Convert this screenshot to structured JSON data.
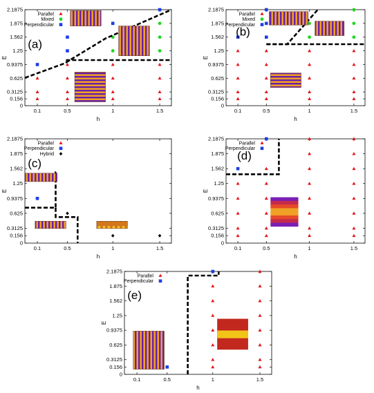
{
  "figure": {
    "colors": {
      "parallel": "#e8141c",
      "mixed": "#22d622",
      "perpendicular": "#1e3ee6",
      "hybrid": "#000000",
      "boundary": "#000000",
      "stripe_dark": "#6a1fa8",
      "stripe_light": "#f0a025"
    }
  },
  "chart_data": [
    {
      "type": "scatter",
      "panel_label": "(a)",
      "xlabel": "h",
      "ylabel": "E",
      "x_ticks": [
        "0.1",
        "0.5",
        "1",
        "1.5"
      ],
      "y_ticks": [
        "0",
        "0.156",
        "0.3125",
        "0.625",
        "0.9375",
        "1.25",
        "1.562",
        "1.875",
        "2.1875"
      ],
      "legend": [
        "Parallel",
        "Mixed",
        "Perpendicular"
      ],
      "series": [
        {
          "name": "Parallel",
          "points": [
            [
              0.1,
              0.156
            ],
            [
              0.1,
              0.3125
            ],
            [
              0.1,
              0.625
            ],
            [
              0.5,
              0.156
            ],
            [
              0.5,
              0.3125
            ],
            [
              0.5,
              0.625
            ],
            [
              0.5,
              0.9375
            ],
            [
              1,
              0.156
            ],
            [
              1,
              0.3125
            ],
            [
              1,
              0.625
            ],
            [
              1,
              0.9375
            ],
            [
              1.5,
              0.156
            ],
            [
              1.5,
              0.3125
            ],
            [
              1.5,
              0.625
            ],
            [
              1.5,
              0.9375
            ]
          ]
        },
        {
          "name": "Mixed",
          "points": [
            [
              1,
              1.25
            ],
            [
              1,
              1.562
            ],
            [
              1,
              1.875
            ],
            [
              1.5,
              1.25
            ],
            [
              1.5,
              1.562
            ],
            [
              1.5,
              1.875
            ]
          ]
        },
        {
          "name": "Perpendicular",
          "points": [
            [
              0.1,
              0.9375
            ],
            [
              0.5,
              1.25
            ],
            [
              0.5,
              1.562
            ],
            [
              1,
              1.875
            ],
            [
              1.5,
              2.1875
            ]
          ]
        }
      ]
    },
    {
      "type": "scatter",
      "panel_label": "(b)",
      "xlabel": "h",
      "ylabel": "E",
      "x_ticks": [
        "0.1",
        "0.5",
        "1",
        "1.5"
      ],
      "y_ticks": [
        "0",
        "0.156",
        "0.3125",
        "0.625",
        "0.9375",
        "1.25",
        "1.562",
        "1.875",
        "2.1875"
      ],
      "legend": [
        "Parallel",
        "Mixed",
        "Perpendicular"
      ],
      "series": [
        {
          "name": "Parallel",
          "points": [
            [
              0.1,
              0.156
            ],
            [
              0.1,
              0.3125
            ],
            [
              0.1,
              0.625
            ],
            [
              0.1,
              0.9375
            ],
            [
              0.1,
              1.25
            ],
            [
              0.5,
              0.156
            ],
            [
              0.5,
              0.3125
            ],
            [
              0.5,
              0.625
            ],
            [
              0.5,
              0.9375
            ],
            [
              0.5,
              1.25
            ],
            [
              1,
              0.156
            ],
            [
              1,
              0.3125
            ],
            [
              1,
              0.625
            ],
            [
              1,
              0.9375
            ],
            [
              1,
              1.25
            ],
            [
              1.5,
              0.156
            ],
            [
              1.5,
              0.3125
            ],
            [
              1.5,
              0.625
            ],
            [
              1.5,
              0.9375
            ],
            [
              1.5,
              1.25
            ]
          ]
        },
        {
          "name": "Mixed",
          "points": [
            [
              1,
              1.562
            ],
            [
              1,
              1.875
            ],
            [
              1.5,
              1.562
            ],
            [
              1.5,
              1.875
            ],
            [
              1.5,
              2.1875
            ]
          ]
        },
        {
          "name": "Perpendicular",
          "points": [
            [
              0.1,
              1.562
            ],
            [
              0.5,
              1.562
            ],
            [
              0.5,
              1.875
            ],
            [
              0.5,
              2.1875
            ]
          ]
        }
      ]
    },
    {
      "type": "scatter",
      "panel_label": "(c)",
      "xlabel": "h",
      "ylabel": "E",
      "x_ticks": [
        "0.1",
        "0.5",
        "1",
        "1.5"
      ],
      "y_ticks": [
        "0",
        "0.156",
        "0.3125",
        "0.625",
        "0.9375",
        "1.25",
        "1.562",
        "1.875",
        "2.1875"
      ],
      "legend": [
        "Parallel",
        "Perpendicular",
        "Hybrid"
      ],
      "series": [
        {
          "name": "Parallel",
          "points": []
        },
        {
          "name": "Perpendicular",
          "points": [
            [
              0.1,
              0.9375
            ]
          ]
        },
        {
          "name": "Hybrid",
          "points": [
            [
              0.5,
              0.625
            ],
            [
              1,
              0.156
            ],
            [
              1.5,
              0.156
            ]
          ]
        }
      ]
    },
    {
      "type": "scatter",
      "panel_label": "(d)",
      "xlabel": "h",
      "ylabel": "E",
      "x_ticks": [
        "0.1",
        "0.5",
        "1",
        "1.5"
      ],
      "y_ticks": [
        "0",
        "0.156",
        "0.3125",
        "0.625",
        "0.9375",
        "1.25",
        "1.562",
        "1.875",
        "2.1875"
      ],
      "legend": [
        "Parallel",
        "Perpendicular"
      ],
      "series": [
        {
          "name": "Parallel",
          "points": [
            [
              0.1,
              0.156
            ],
            [
              0.1,
              0.3125
            ],
            [
              0.1,
              0.625
            ],
            [
              0.1,
              0.9375
            ],
            [
              0.1,
              1.25
            ],
            [
              0.5,
              0.156
            ],
            [
              0.5,
              0.3125
            ],
            [
              0.5,
              0.625
            ],
            [
              0.5,
              0.9375
            ],
            [
              0.5,
              1.25
            ],
            [
              0.5,
              1.562
            ],
            [
              1,
              0.156
            ],
            [
              1,
              0.3125
            ],
            [
              1,
              0.625
            ],
            [
              1,
              0.9375
            ],
            [
              1,
              1.25
            ],
            [
              1,
              1.562
            ],
            [
              1,
              1.875
            ],
            [
              1,
              2.1875
            ],
            [
              1.5,
              0.156
            ],
            [
              1.5,
              0.3125
            ],
            [
              1.5,
              0.625
            ],
            [
              1.5,
              0.9375
            ],
            [
              1.5,
              1.25
            ],
            [
              1.5,
              1.562
            ],
            [
              1.5,
              1.875
            ],
            [
              1.5,
              2.1875
            ]
          ]
        },
        {
          "name": "Perpendicular",
          "points": [
            [
              0.1,
              1.562
            ],
            [
              0.5,
              2.1875
            ]
          ]
        }
      ]
    },
    {
      "type": "scatter",
      "panel_label": "(e)",
      "xlabel": "h",
      "ylabel": "E",
      "x_ticks": [
        "0.1",
        "0.5",
        "1",
        "1.5"
      ],
      "y_ticks": [
        "0",
        "0.156",
        "0.3125",
        "0.625",
        "0.9375",
        "1.25",
        "1.562",
        "1.875",
        "2.1875"
      ],
      "legend": [
        "Parallel",
        "Perpendicular"
      ],
      "series": [
        {
          "name": "Parallel",
          "points": [
            [
              1,
              0.156
            ],
            [
              1,
              0.3125
            ],
            [
              1,
              0.625
            ],
            [
              1,
              0.9375
            ],
            [
              1,
              1.25
            ],
            [
              1,
              1.562
            ],
            [
              1,
              1.875
            ],
            [
              1.5,
              0.156
            ],
            [
              1.5,
              0.3125
            ],
            [
              1.5,
              0.625
            ],
            [
              1.5,
              0.9375
            ],
            [
              1.5,
              1.25
            ],
            [
              1.5,
              1.562
            ],
            [
              1.5,
              1.875
            ],
            [
              1.5,
              2.1875
            ]
          ]
        },
        {
          "name": "Perpendicular",
          "points": [
            [
              0.1,
              0.156
            ],
            [
              0.5,
              0.156
            ],
            [
              1,
              2.1875
            ]
          ]
        }
      ]
    }
  ]
}
